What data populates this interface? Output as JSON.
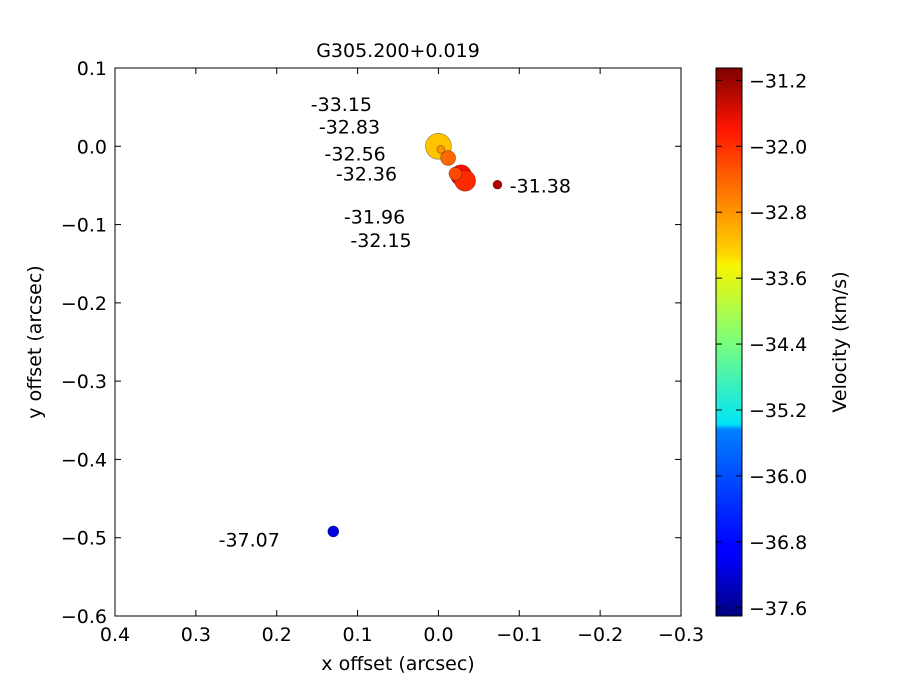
{
  "chart_data": {
    "type": "scatter",
    "title": "G305.200+0.019",
    "xlabel": "x offset (arcsec)",
    "ylabel": "y offset (arcsec)",
    "xlim": [
      0.4,
      -0.3
    ],
    "ylim": [
      -0.6,
      0.1
    ],
    "x_ticks": [
      "0.4",
      "0.3",
      "0.2",
      "0.1",
      "0.0",
      "−0.1",
      "−0.2",
      "−0.3"
    ],
    "y_ticks": [
      "−0.6",
      "−0.5",
      "−0.4",
      "−0.3",
      "−0.2",
      "−0.1",
      "0.0",
      "0.1"
    ],
    "grid": false,
    "colorbar": {
      "label": "Velocity (km/s)",
      "range": [
        -37.7,
        -31.05
      ],
      "ticks": [
        "−31.2",
        "−32.0",
        "−32.8",
        "−33.6",
        "−34.4",
        "−35.2",
        "−36.0",
        "−36.8",
        "−37.6"
      ],
      "colormap": "jet"
    },
    "points": [
      {
        "x": 0.0,
        "y": 0.0,
        "velocity": -33.15,
        "relative_size": 1.0,
        "label": "-33.15"
      },
      {
        "x": -0.003,
        "y": -0.004,
        "velocity": -32.83,
        "relative_size": 0.1,
        "label": "-32.83"
      },
      {
        "x": -0.012,
        "y": -0.015,
        "velocity": -32.56,
        "relative_size": 0.45,
        "label": "-32.56"
      },
      {
        "x": -0.021,
        "y": -0.035,
        "velocity": -32.36,
        "relative_size": 0.35,
        "label": "-32.36"
      },
      {
        "x": -0.028,
        "y": -0.037,
        "velocity": -31.96,
        "relative_size": 0.75,
        "label": "-31.96"
      },
      {
        "x": -0.033,
        "y": -0.044,
        "velocity": -32.15,
        "relative_size": 0.75,
        "label": "-32.15"
      },
      {
        "x": -0.073,
        "y": -0.049,
        "velocity": -31.38,
        "relative_size": 0.15,
        "label": "-31.38"
      },
      {
        "x": 0.13,
        "y": -0.492,
        "velocity": -37.07,
        "relative_size": 0.25,
        "label": "-37.07"
      }
    ],
    "labels": [
      {
        "text": "-33.15",
        "x": 0.12,
        "y": 0.054
      },
      {
        "text": "-32.83",
        "x": 0.11,
        "y": 0.025
      },
      {
        "text": "-32.56",
        "x": 0.103,
        "y": -0.009
      },
      {
        "text": "-32.36",
        "x": 0.089,
        "y": -0.035
      },
      {
        "text": "-31.96",
        "x": 0.079,
        "y": -0.09
      },
      {
        "text": "-32.15",
        "x": 0.071,
        "y": -0.12
      },
      {
        "text": "-31.38",
        "x": -0.126,
        "y": -0.05
      },
      {
        "text": "-37.07",
        "x": 0.234,
        "y": -0.502
      }
    ]
  }
}
